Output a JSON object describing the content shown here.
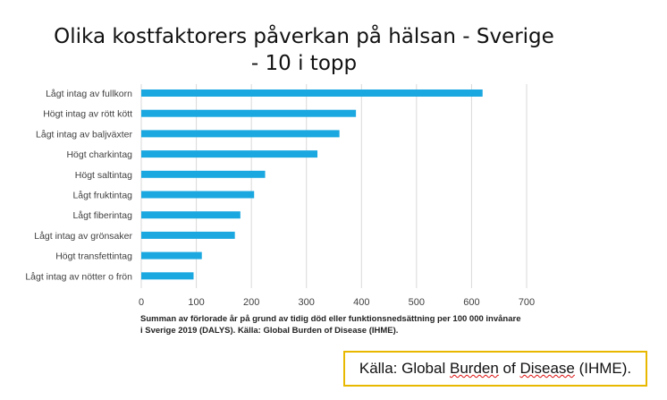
{
  "title": "Olika kostfaktorers påverkan på hälsan - Sverige - 10 i topp",
  "caption_line1": "Summan av förlorade år på grund av tidig död eller funktionsnedsättning per 100 000 invånare",
  "caption_line2": "i Sverige 2019 (DALYS). Källa: Global Burden of Disease (IHME).",
  "source_box": {
    "prefix": "Källa: Global ",
    "word1": "Burden",
    "mid": " of ",
    "word2": "Disease",
    "suffix": " (IHME)."
  },
  "chart_data": {
    "type": "bar",
    "orientation": "horizontal",
    "categories": [
      "Lågt intag av fullkorn",
      "Högt intag av rött kött",
      "Lågt intag av baljväxter",
      "Högt charkintag",
      "Högt saltintag",
      "Lågt fruktintag",
      "Lågt fiberintag",
      "Lågt intag av grönsaker",
      "Högt transfettintag",
      "Lågt intag av nötter o frön"
    ],
    "values": [
      620,
      390,
      360,
      320,
      225,
      205,
      180,
      170,
      110,
      95
    ],
    "xlim": [
      0,
      700
    ],
    "xticks": [
      0,
      100,
      200,
      300,
      400,
      500,
      600,
      700
    ],
    "grid": "vertical",
    "bar_color": "#1ba8e0"
  }
}
